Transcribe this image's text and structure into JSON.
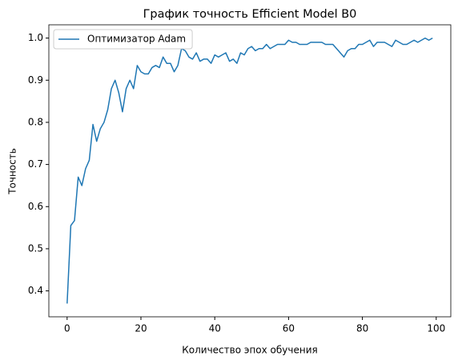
{
  "chart_data": {
    "type": "line",
    "title": "График точность Efficient Model B0",
    "xlabel": "Количество эпох обучения",
    "ylabel": "Точность",
    "x": [
      0,
      1,
      2,
      3,
      4,
      5,
      6,
      7,
      8,
      9,
      10,
      11,
      12,
      13,
      14,
      15,
      16,
      17,
      18,
      19,
      20,
      21,
      22,
      23,
      24,
      25,
      26,
      27,
      28,
      29,
      30,
      31,
      32,
      33,
      34,
      35,
      36,
      37,
      38,
      39,
      40,
      41,
      42,
      43,
      44,
      45,
      46,
      47,
      48,
      49,
      50,
      51,
      52,
      53,
      54,
      55,
      56,
      57,
      58,
      59,
      60,
      61,
      62,
      63,
      64,
      65,
      66,
      67,
      68,
      69,
      70,
      71,
      72,
      73,
      74,
      75,
      76,
      77,
      78,
      79,
      80,
      81,
      82,
      83,
      84,
      85,
      86,
      87,
      88,
      89,
      90,
      91,
      92,
      93,
      94,
      95,
      96,
      97,
      98,
      99
    ],
    "series": [
      {
        "name": "Оптимизатор Adam",
        "color": "#1f77b4",
        "values": [
          0.37,
          0.555,
          0.567,
          0.67,
          0.65,
          0.69,
          0.71,
          0.795,
          0.755,
          0.785,
          0.8,
          0.83,
          0.88,
          0.9,
          0.87,
          0.825,
          0.88,
          0.9,
          0.88,
          0.935,
          0.92,
          0.915,
          0.915,
          0.93,
          0.935,
          0.93,
          0.955,
          0.94,
          0.94,
          0.92,
          0.935,
          0.975,
          0.97,
          0.955,
          0.95,
          0.965,
          0.945,
          0.95,
          0.95,
          0.94,
          0.96,
          0.955,
          0.96,
          0.965,
          0.945,
          0.95,
          0.94,
          0.965,
          0.96,
          0.975,
          0.98,
          0.97,
          0.975,
          0.975,
          0.985,
          0.975,
          0.98,
          0.985,
          0.985,
          0.985,
          0.995,
          0.99,
          0.99,
          0.985,
          0.985,
          0.985,
          0.99,
          0.99,
          0.99,
          0.99,
          0.985,
          0.985,
          0.985,
          0.975,
          0.965,
          0.955,
          0.97,
          0.975,
          0.975,
          0.985,
          0.985,
          0.99,
          0.995,
          0.98,
          0.99,
          0.99,
          0.99,
          0.985,
          0.98,
          0.995,
          0.99,
          0.985,
          0.985,
          0.99,
          0.995,
          0.99,
          0.995,
          1.0,
          0.995,
          1.0
        ]
      }
    ],
    "xlim": [
      -4.95,
      103.95
    ],
    "ylim": [
      0.3385,
      1.0315
    ],
    "xticks": [
      0,
      20,
      40,
      60,
      80,
      100
    ],
    "yticks": [
      0.4,
      0.5,
      0.6,
      0.7,
      0.8,
      0.9,
      {
        "value": 1,
        "label": "1.0"
      }
    ],
    "grid": false,
    "legend": "upper-left"
  }
}
